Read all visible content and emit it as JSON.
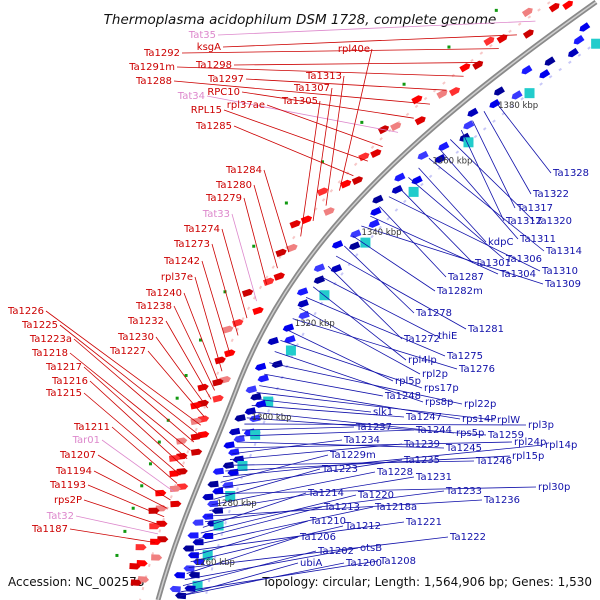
{
  "title": "Thermoplasma acidophilum DSM 1728, complete genome",
  "accession": "Accession: NC_002578",
  "summary": "Topology: circular; Length: 1,564,906 bp; Genes: 1,530",
  "colors": {
    "forward": "#ee1111",
    "reverse": "#1111dd",
    "trna": "#ee88cc",
    "backbone": "#8c8c8c",
    "tick": "#119911",
    "label_forward": "#cc0000",
    "label_reverse": "#1111aa",
    "label_trna": "#dd88cc"
  },
  "scale_labels": [
    "1380 kbp",
    "1360 kbp",
    "1340 kbp",
    "1320 kbp",
    "1300 kbp",
    "1280 kbp",
    "1260 kbp"
  ],
  "forward_labels": [
    "Tat35",
    "ksgA",
    "Ta1292",
    "Ta1298",
    "Ta1291m",
    "Ta1297",
    "Ta1288",
    "RPC10",
    "Tat34",
    "rpl37ae",
    "RPL15",
    "Ta1285",
    "rpl40e",
    "Ta1313",
    "Ta1307",
    "Ta1305",
    "Ta1284",
    "Ta1280",
    "Ta1279",
    "Tat33",
    "Ta1274",
    "Ta1273",
    "Ta1242",
    "rpl37e",
    "Ta1240",
    "Ta1238",
    "Ta1232",
    "Ta1230",
    "Ta1227",
    "Ta1226",
    "Ta1225",
    "Ta1223a",
    "Ta1218",
    "Ta1217",
    "Ta1216",
    "Ta1215",
    "Ta1211",
    "Tar01",
    "Ta1207",
    "Ta1194",
    "Ta1193",
    "rps2P",
    "Tat32",
    "Ta1187"
  ],
  "reverse_labels": [
    "Ta1328",
    "Ta1322",
    "Ta1317",
    "Ta1312",
    "Ta1320",
    "Ta1311",
    "Ta1314",
    "kdpC",
    "Ta1306",
    "Ta1301",
    "Ta1310",
    "Ta1287",
    "Ta1304",
    "Ta1309",
    "Ta1282m",
    "Ta1278",
    "Ta1281",
    "Ta1272",
    "thiE",
    "rpl4lp",
    "Ta1275",
    "rpl2p",
    "Ta1276",
    "rpl5p",
    "rps17p",
    "rps8p",
    "rpl22p",
    "Ta1248",
    "rps14P",
    "rplW",
    "slk1",
    "Ta1247",
    "rps5p",
    "Ta1259",
    "rpl3p",
    "Ta1237",
    "Ta1244",
    "Ta1245",
    "rpl24p",
    "Ta1234",
    "Ta1239",
    "Ta1246",
    "rpl15p",
    "rpl14p",
    "Ta1229m",
    "Ta1235",
    "rpl30p",
    "Ta1223",
    "Ta1228",
    "Ta1231",
    "Ta1236",
    "Ta1233",
    "Ta1214",
    "Ta1220",
    "Ta1213",
    "Ta1218a",
    "Ta1221",
    "Ta1210",
    "Ta1212",
    "Ta1222",
    "Ta1206",
    "otsB",
    "Ta1202",
    "Ta1208",
    "ubiA",
    "Ta1200"
  ]
}
